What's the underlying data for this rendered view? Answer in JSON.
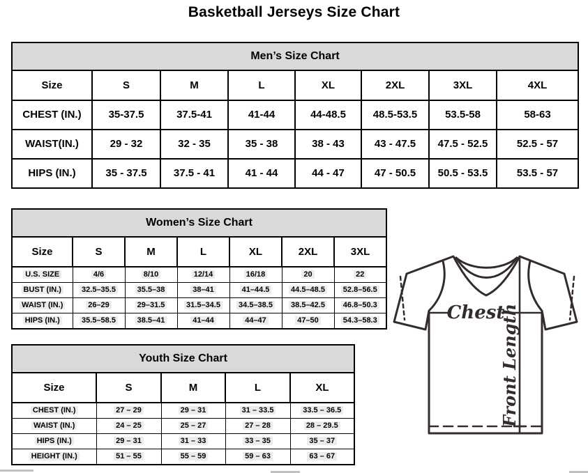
{
  "page_title": "Basketball Jerseys Size Chart",
  "colors": {
    "table_header_bg": "#d9d9d9",
    "border": "#000000",
    "diagram_line": "#342c2c"
  },
  "tables": {
    "mens": {
      "title": "Men’s Size Chart",
      "size_label": "Size",
      "columns": [
        "S",
        "M",
        "L",
        "XL",
        "2XL",
        "3XL",
        "4XL"
      ],
      "rows": [
        {
          "label": "CHEST (IN.)",
          "values": [
            "35-37.5",
            "37.5-41",
            "41-44",
            "44-48.5",
            "48.5-53.5",
            "53.5-58",
            "58-63"
          ]
        },
        {
          "label": "WAIST(IN.)",
          "values": [
            "29 - 32",
            "32 - 35",
            "35 - 38",
            "38 - 43",
            "43 - 47.5",
            "47.5 - 52.5",
            "52.5 - 57"
          ]
        },
        {
          "label": "HIPS (IN.)",
          "values": [
            "35 - 37.5",
            "37.5 - 41",
            "41 - 44",
            "44 - 47",
            "47 - 50.5",
            "50.5 - 53.5",
            "53.5 - 57"
          ]
        }
      ]
    },
    "womens": {
      "title": "Women’s Size Chart",
      "size_label": "Size",
      "columns": [
        "S",
        "M",
        "L",
        "XL",
        "2XL",
        "3XL"
      ],
      "rows": [
        {
          "label": "U.S. SIZE",
          "values": [
            "4/6",
            "8/10",
            "12/14",
            "16/18",
            "20",
            "22"
          ]
        },
        {
          "label": "BUST (IN.)",
          "values": [
            "32.5–35.5",
            "35.5–38",
            "38–41",
            "41–44.5",
            "44.5–48.5",
            "52.8–56.5"
          ]
        },
        {
          "label": "WAIST (IN.)",
          "values": [
            "26–29",
            "29–31.5",
            "31.5–34.5",
            "34.5–38.5",
            "38.5–42.5",
            "46.8–50.3"
          ]
        },
        {
          "label": "HIPS (IN.)",
          "values": [
            "35.5–58.5",
            "38.5–41",
            "41–44",
            "44–47",
            "47–50",
            "54.3–58.3"
          ]
        }
      ]
    },
    "youth": {
      "title": "Youth Size Chart",
      "size_label": "Size",
      "columns": [
        "S",
        "M",
        "L",
        "XL"
      ],
      "rows": [
        {
          "label": "CHEST (IN.)",
          "values": [
            "27 – 29",
            "29 – 31",
            "31 – 33.5",
            "33.5 – 36.5"
          ]
        },
        {
          "label": "WAIST (IN.)",
          "values": [
            "24 – 25",
            "25 – 27",
            "27 – 28",
            "28 – 29.5"
          ]
        },
        {
          "label": "HIPS (IN.)",
          "values": [
            "29 – 31",
            "31 – 33",
            "33 – 35",
            "35 – 37"
          ]
        },
        {
          "label": "HEIGHT (IN.)",
          "values": [
            "51 – 55",
            "55 – 59",
            "59 – 63",
            "63 – 67"
          ]
        }
      ]
    }
  },
  "diagram": {
    "chest_label": "Chest",
    "front_length_label": "Front Length"
  }
}
